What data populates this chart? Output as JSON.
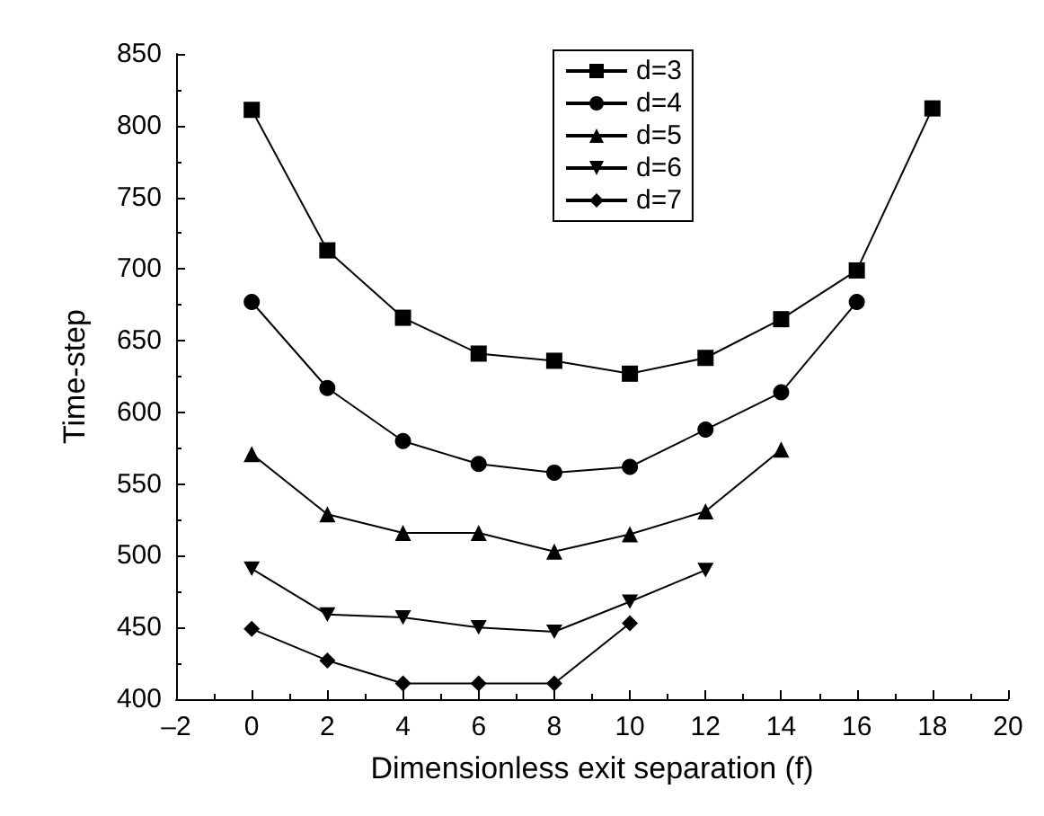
{
  "chart_data": {
    "type": "line",
    "xlabel": "Dimensionless exit separation (f)",
    "ylabel": "Time-step",
    "xlim": [
      -2,
      20
    ],
    "xticks": [
      {
        "value": -2,
        "label": "–2"
      },
      0,
      2,
      4,
      6,
      8,
      10,
      12,
      14,
      16,
      18,
      20
    ],
    "ylim": [
      400,
      850
    ],
    "yticks": [
      400,
      450,
      500,
      550,
      600,
      650,
      700,
      750,
      800,
      850
    ],
    "grid": false,
    "legend": "top",
    "line_style": "solid",
    "series": [
      {
        "name": "d=3",
        "color": "#000000",
        "marker": "square",
        "x": [
          0,
          2,
          4,
          6,
          8,
          10,
          12,
          14,
          16,
          18
        ],
        "values": [
          811,
          713,
          666,
          641,
          636,
          627,
          638,
          665,
          699,
          812
        ]
      },
      {
        "name": "d=4",
        "color": "#000000",
        "marker": "circle",
        "x": [
          0,
          2,
          4,
          6,
          8,
          10,
          12,
          14,
          16
        ],
        "values": [
          677,
          617,
          580,
          564,
          558,
          562,
          588,
          614,
          677
        ]
      },
      {
        "name": "d=5",
        "color": "#000000",
        "marker": "triangle",
        "x": [
          0,
          2,
          4,
          6,
          8,
          10,
          12,
          14
        ],
        "values": [
          571,
          529,
          516,
          516,
          503,
          515,
          531,
          574
        ]
      },
      {
        "name": "d=6",
        "color": "#000000",
        "marker": "triangle-down",
        "x": [
          0,
          2,
          4,
          6,
          8,
          10,
          12
        ],
        "values": [
          491,
          459,
          457,
          450,
          447,
          468,
          490
        ]
      },
      {
        "name": "d=7",
        "color": "#000000",
        "marker": "diamond",
        "x": [
          0,
          2,
          4,
          6,
          8,
          10
        ],
        "values": [
          449,
          427,
          411,
          411,
          411,
          453
        ]
      }
    ]
  }
}
